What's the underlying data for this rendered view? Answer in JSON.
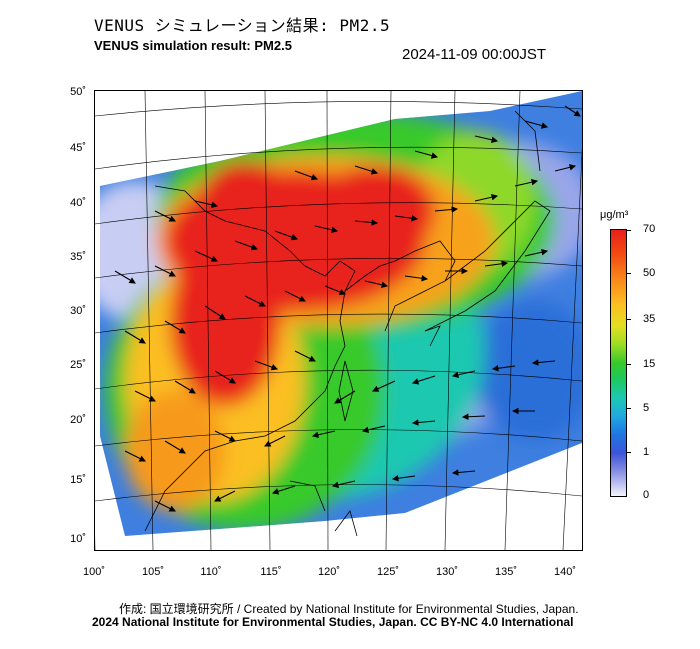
{
  "title_ja": "VENUS シミュレーション結果: PM2.5",
  "title_en": "VENUS simulation result: PM2.5",
  "timestamp": "2024-11-09 00:00JST",
  "map": {
    "lat_labels": [
      "50˚",
      "45˚",
      "40˚",
      "35˚",
      "30˚",
      "25˚",
      "20˚",
      "15˚",
      "10˚"
    ],
    "lon_labels": [
      "100˚",
      "105˚",
      "110˚",
      "115˚",
      "120˚",
      "125˚",
      "130˚",
      "135˚",
      "140˚"
    ],
    "lat_range": [
      10,
      50
    ],
    "lon_range": [
      100,
      140
    ]
  },
  "colorbar": {
    "unit": "μg/m³",
    "ticks": [
      "70",
      "50",
      "35",
      "15",
      "5",
      "1",
      "0"
    ],
    "colors": {
      "high": "#e8201a",
      "mid": "#fbbf22",
      "green": "#37c92b",
      "cyan": "#1ec8b0",
      "blue": "#1f75e0",
      "low": "#f4f4fb"
    }
  },
  "credit_line1": "作成: 国立環境研究所 / Created by National Institute for Environmental Studies, Japan.",
  "credit_line2": "2024 National Institute for Environmental Studies, Japan. CC BY-NC 4.0 International"
}
